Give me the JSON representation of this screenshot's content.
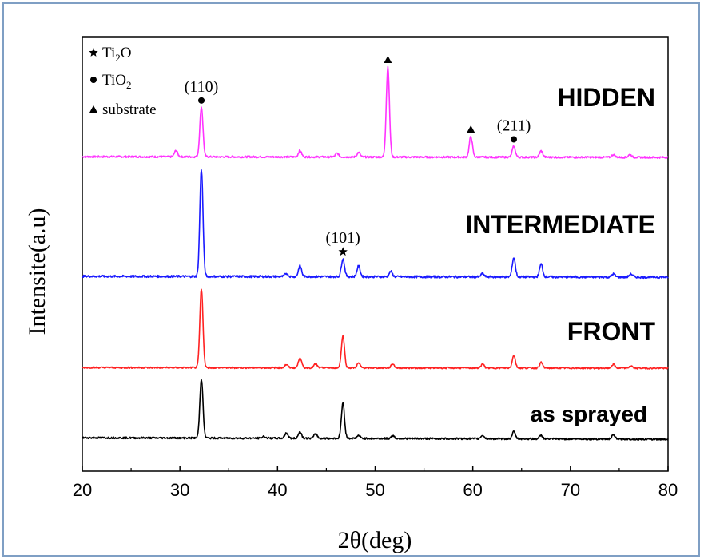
{
  "chart_data": {
    "type": "line",
    "xlabel": "2θ(deg)",
    "ylabel": "Intensite(a.u)",
    "xlim": [
      20,
      80
    ],
    "xticks": [
      20,
      30,
      40,
      50,
      60,
      70,
      80
    ],
    "grid": false,
    "legend": {
      "placement": "top-left",
      "entries": [
        {
          "symbol": "star",
          "label": "Ti2O",
          "base": "Ti",
          "sub": "2",
          "tail": "O"
        },
        {
          "symbol": "circle",
          "label": "TiO2",
          "base": "TiO",
          "sub": "2",
          "tail": ""
        },
        {
          "symbol": "triangle",
          "label": "substrate",
          "base": "substrate",
          "sub": "",
          "tail": ""
        }
      ]
    },
    "series": [
      {
        "name": "HIDDEN",
        "color": "#ff33ff",
        "peaks": [
          [
            29.6,
            0.07
          ],
          [
            32.2,
            0.55
          ],
          [
            42.3,
            0.07
          ],
          [
            46.1,
            0.04
          ],
          [
            48.3,
            0.05
          ],
          [
            51.3,
            1.0
          ],
          [
            59.8,
            0.23
          ],
          [
            64.2,
            0.12
          ],
          [
            67.0,
            0.07
          ],
          [
            74.4,
            0.03
          ],
          [
            76.1,
            0.03
          ]
        ],
        "annotations": [
          {
            "x": 32.2,
            "marker": "circle",
            "label": "(110)"
          },
          {
            "x": 51.3,
            "marker": "triangle",
            "label": ""
          },
          {
            "x": 59.8,
            "marker": "triangle",
            "label": ""
          },
          {
            "x": 64.2,
            "marker": "circle",
            "label": "(211)"
          }
        ]
      },
      {
        "name": "INTERMEDIATE",
        "color": "#1a1aff",
        "peaks": [
          [
            32.2,
            1.0
          ],
          [
            40.9,
            0.03
          ],
          [
            42.3,
            0.1
          ],
          [
            46.7,
            0.17
          ],
          [
            48.3,
            0.1
          ],
          [
            51.6,
            0.05
          ],
          [
            61.0,
            0.03
          ],
          [
            64.2,
            0.18
          ],
          [
            67.0,
            0.12
          ],
          [
            74.4,
            0.03
          ],
          [
            76.2,
            0.03
          ]
        ],
        "annotations": [
          {
            "x": 46.7,
            "marker": "star",
            "label": "(101)"
          }
        ]
      },
      {
        "name": "FRONT",
        "color": "#ff2222",
        "peaks": [
          [
            32.2,
            1.0
          ],
          [
            40.9,
            0.04
          ],
          [
            42.3,
            0.13
          ],
          [
            43.9,
            0.05
          ],
          [
            46.7,
            0.41
          ],
          [
            48.3,
            0.06
          ],
          [
            51.8,
            0.05
          ],
          [
            61.0,
            0.05
          ],
          [
            64.2,
            0.16
          ],
          [
            67.0,
            0.07
          ],
          [
            74.4,
            0.05
          ],
          [
            76.2,
            0.03
          ]
        ],
        "annotations": []
      },
      {
        "name": "as sprayed",
        "color": "#000000",
        "peaks": [
          [
            32.2,
            1.0
          ],
          [
            38.6,
            0.03
          ],
          [
            40.9,
            0.09
          ],
          [
            42.3,
            0.11
          ],
          [
            43.9,
            0.08
          ],
          [
            46.7,
            0.6
          ],
          [
            48.3,
            0.05
          ],
          [
            51.8,
            0.05
          ],
          [
            61.0,
            0.06
          ],
          [
            64.2,
            0.12
          ],
          [
            67.0,
            0.06
          ],
          [
            74.4,
            0.07
          ]
        ],
        "annotations": []
      }
    ]
  }
}
